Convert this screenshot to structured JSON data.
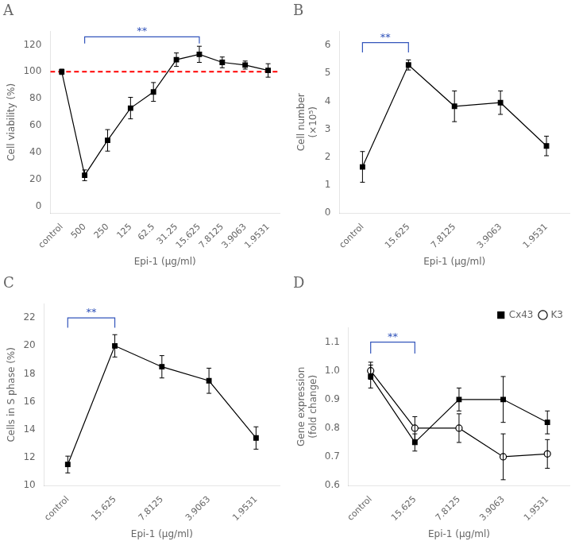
{
  "chart_data": [
    {
      "type": "line",
      "title": "A",
      "x_label": "Epi-1 (μg/ml)",
      "y_label": "Cell viability (%)",
      "categories": [
        "control",
        "500",
        "250",
        "125",
        "62.5",
        "31.25",
        "15.625",
        "7.8125",
        "3.9063",
        "1.9531"
      ],
      "series": [
        {
          "values": [
            100,
            23,
            49,
            73,
            85,
            109,
            113,
            107,
            105,
            101
          ],
          "errors": [
            2,
            4,
            8,
            8,
            7,
            5,
            6,
            4,
            3,
            5
          ],
          "color": "black",
          "marker": "square",
          "line_style": "solid"
        }
      ],
      "ylim": [
        -5,
        130
      ],
      "yticks": [
        0,
        20,
        40,
        60,
        80,
        100,
        120
      ],
      "grid": false,
      "annotations": [
        {
          "type": "hline",
          "y": 100,
          "color": "red",
          "line_style": "dashed"
        },
        {
          "type": "bracket",
          "text": "**",
          "from": "500",
          "to": "15.625",
          "y_bottom": 121,
          "y_top": 126,
          "color": "#3355bb"
        }
      ]
    },
    {
      "type": "line",
      "title": "B",
      "x_label": "Epi-1 (μg/ml)",
      "y_label": "Cell number\n(×10⁵)",
      "categories": [
        "control",
        "15.625",
        "7.8125",
        "3.9063",
        "1.9531"
      ],
      "series": [
        {
          "values": [
            1.65,
            5.3,
            3.82,
            3.95,
            2.4
          ],
          "errors": [
            0.55,
            0.18,
            0.55,
            0.42,
            0.35
          ],
          "color": "black",
          "marker": "square",
          "line_style": "solid"
        }
      ],
      "ylim": [
        0,
        6.5
      ],
      "yticks": [
        0,
        1,
        2,
        3,
        4,
        5,
        6
      ],
      "grid": false,
      "annotations": [
        {
          "type": "bracket",
          "text": "**",
          "from": "control",
          "to": "15.625",
          "y_bottom": 5.75,
          "y_top": 6.1,
          "color": "#3355bb"
        }
      ]
    },
    {
      "type": "line",
      "title": "C",
      "x_label": "Epi-1 (μg/ml)",
      "y_label": "Cells in S phase (%)",
      "categories": [
        "control",
        "15.625",
        "7.8125",
        "3.9063",
        "1.9531"
      ],
      "series": [
        {
          "values": [
            11.5,
            20.0,
            18.5,
            17.5,
            13.4
          ],
          "errors": [
            0.6,
            0.8,
            0.8,
            0.9,
            0.8
          ],
          "color": "black",
          "marker": "square",
          "line_style": "solid"
        }
      ],
      "ylim": [
        10,
        23
      ],
      "yticks": [
        10,
        12,
        14,
        16,
        18,
        20,
        22
      ],
      "grid": false,
      "annotations": [
        {
          "type": "bracket",
          "text": "**",
          "from": "control",
          "to": "15.625",
          "y_bottom": 21.3,
          "y_top": 22.0,
          "color": "#3355bb"
        }
      ]
    },
    {
      "type": "line",
      "title": "D",
      "x_label": "Epi-1 (μg/ml)",
      "y_label": "Gene expression\n(fold change)",
      "categories": [
        "control",
        "15.625",
        "7.8125",
        "3.9063",
        "1.9531"
      ],
      "series": [
        {
          "name": "Cx43",
          "values": [
            0.98,
            0.75,
            0.9,
            0.9,
            0.82
          ],
          "errors": [
            0.04,
            0.03,
            0.04,
            0.08,
            0.04
          ],
          "color": "black",
          "marker": "square",
          "line_style": "solid"
        },
        {
          "name": "K3",
          "values": [
            1.0,
            0.8,
            0.8,
            0.7,
            0.71
          ],
          "errors": [
            0.03,
            0.04,
            0.05,
            0.08,
            0.05
          ],
          "color": "black",
          "marker": "open_circle",
          "line_style": "solid"
        }
      ],
      "ylim": [
        0.6,
        1.15
      ],
      "yticks": [
        0.6,
        0.7,
        0.8,
        0.9,
        {
          "value": 1.0,
          "label": "1.0"
        },
        1.1
      ],
      "grid": false,
      "legend": "upper right",
      "annotations": [
        {
          "type": "bracket",
          "text": "**",
          "from": "control",
          "to": "15.625",
          "y_bottom": 1.06,
          "y_top": 1.1,
          "color": "#3355bb"
        }
      ]
    }
  ]
}
